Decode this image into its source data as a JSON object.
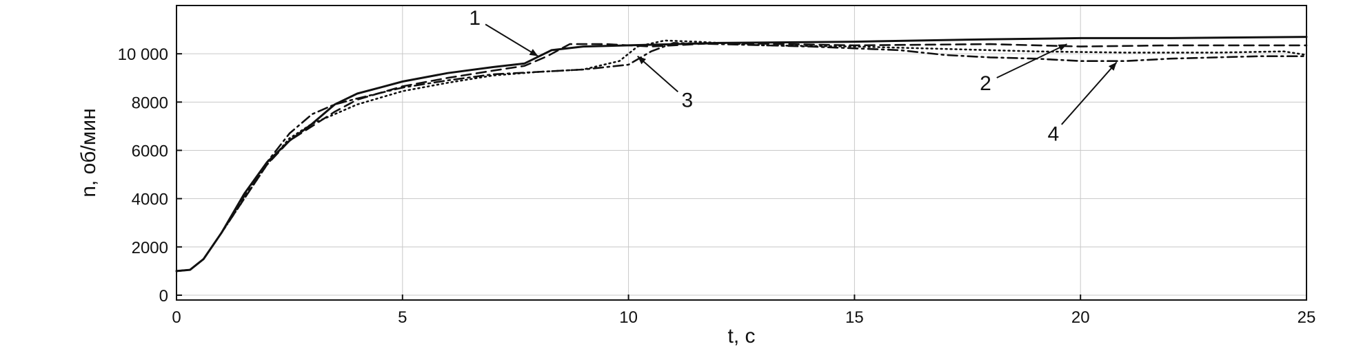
{
  "chart_data": {
    "type": "line",
    "xlabel": "t, с",
    "ylabel": "n, об/мин",
    "xlim": [
      0,
      25
    ],
    "ylim": [
      -200,
      12000
    ],
    "xticks": [
      0,
      5,
      10,
      15,
      20,
      25
    ],
    "xtick_labels": [
      "0",
      "5",
      "10",
      "15",
      "20",
      "25"
    ],
    "yticks": [
      0,
      2000,
      4000,
      6000,
      8000,
      10000
    ],
    "ytick_labels": [
      "0",
      "2000",
      "4000",
      "6000",
      "8000",
      "10 000"
    ],
    "grid": true,
    "series": [
      {
        "label": "1",
        "style": "solid",
        "points": [
          [
            0,
            1000
          ],
          [
            0.3,
            1050
          ],
          [
            0.6,
            1500
          ],
          [
            1,
            2600
          ],
          [
            1.5,
            4200
          ],
          [
            2,
            5500
          ],
          [
            2.5,
            6400
          ],
          [
            3,
            7100
          ],
          [
            3.5,
            7900
          ],
          [
            4,
            8350
          ],
          [
            4.5,
            8600
          ],
          [
            5,
            8850
          ],
          [
            6,
            9200
          ],
          [
            7,
            9450
          ],
          [
            7.7,
            9600
          ],
          [
            8.3,
            10150
          ],
          [
            9,
            10300
          ],
          [
            10,
            10350
          ],
          [
            12,
            10450
          ],
          [
            15,
            10500
          ],
          [
            18,
            10600
          ],
          [
            20,
            10650
          ],
          [
            22,
            10650
          ],
          [
            25,
            10700
          ]
        ]
      },
      {
        "label": "2",
        "style": "dashed",
        "points": [
          [
            0,
            1000
          ],
          [
            0.3,
            1050
          ],
          [
            0.6,
            1500
          ],
          [
            1,
            2600
          ],
          [
            1.5,
            4000
          ],
          [
            2,
            5400
          ],
          [
            2.5,
            6400
          ],
          [
            3,
            7000
          ],
          [
            3.5,
            7600
          ],
          [
            4,
            8100
          ],
          [
            5,
            8650
          ],
          [
            6,
            9000
          ],
          [
            7,
            9300
          ],
          [
            7.7,
            9500
          ],
          [
            8.2,
            9900
          ],
          [
            8.7,
            10400
          ],
          [
            9.5,
            10400
          ],
          [
            10.5,
            10300
          ],
          [
            12,
            10450
          ],
          [
            15,
            10350
          ],
          [
            18,
            10400
          ],
          [
            20,
            10300
          ],
          [
            22,
            10350
          ],
          [
            25,
            10350
          ]
        ]
      },
      {
        "label": "3",
        "style": "dotted",
        "points": [
          [
            0,
            1000
          ],
          [
            0.3,
            1050
          ],
          [
            0.6,
            1500
          ],
          [
            1,
            2600
          ],
          [
            1.5,
            4000
          ],
          [
            2,
            5400
          ],
          [
            2.5,
            6500
          ],
          [
            3,
            7100
          ],
          [
            3.5,
            7500
          ],
          [
            4,
            7900
          ],
          [
            5,
            8450
          ],
          [
            6,
            8800
          ],
          [
            7,
            9100
          ],
          [
            8,
            9250
          ],
          [
            9,
            9350
          ],
          [
            9.8,
            9700
          ],
          [
            10.2,
            10300
          ],
          [
            10.8,
            10550
          ],
          [
            11.5,
            10500
          ],
          [
            13,
            10350
          ],
          [
            15,
            10300
          ],
          [
            17,
            10200
          ],
          [
            19,
            10100
          ],
          [
            21,
            10050
          ],
          [
            23,
            10050
          ],
          [
            24.5,
            10100
          ],
          [
            25,
            9950
          ]
        ]
      },
      {
        "label": "4",
        "style": "dashdot",
        "points": [
          [
            0,
            1000
          ],
          [
            0.3,
            1050
          ],
          [
            0.6,
            1500
          ],
          [
            1,
            2600
          ],
          [
            1.5,
            4100
          ],
          [
            2,
            5500
          ],
          [
            2.5,
            6700
          ],
          [
            3,
            7500
          ],
          [
            3.5,
            7900
          ],
          [
            4,
            8150
          ],
          [
            5,
            8600
          ],
          [
            6,
            8900
          ],
          [
            7,
            9150
          ],
          [
            8,
            9250
          ],
          [
            9,
            9350
          ],
          [
            10,
            9550
          ],
          [
            10.5,
            10100
          ],
          [
            11,
            10450
          ],
          [
            12,
            10400
          ],
          [
            14,
            10300
          ],
          [
            16,
            10150
          ],
          [
            17,
            9950
          ],
          [
            18,
            9850
          ],
          [
            19,
            9800
          ],
          [
            20,
            9700
          ],
          [
            21,
            9700
          ],
          [
            22,
            9800
          ],
          [
            23,
            9850
          ],
          [
            24,
            9900
          ],
          [
            25,
            9900
          ]
        ]
      }
    ],
    "annotations": [
      {
        "text": "1",
        "series": "1",
        "label_at": [
          6.6,
          11200
        ],
        "points_to": [
          8.0,
          9900
        ]
      },
      {
        "text": "3",
        "series": "3",
        "label_at": [
          11.3,
          7800
        ],
        "points_to": [
          10.2,
          9900
        ]
      },
      {
        "text": "2",
        "series": "2",
        "label_at": [
          17.9,
          8500
        ],
        "points_to": [
          19.7,
          10400
        ]
      },
      {
        "text": "4",
        "series": "4",
        "label_at": [
          19.4,
          6400
        ],
        "points_to": [
          20.8,
          9650
        ]
      }
    ]
  }
}
